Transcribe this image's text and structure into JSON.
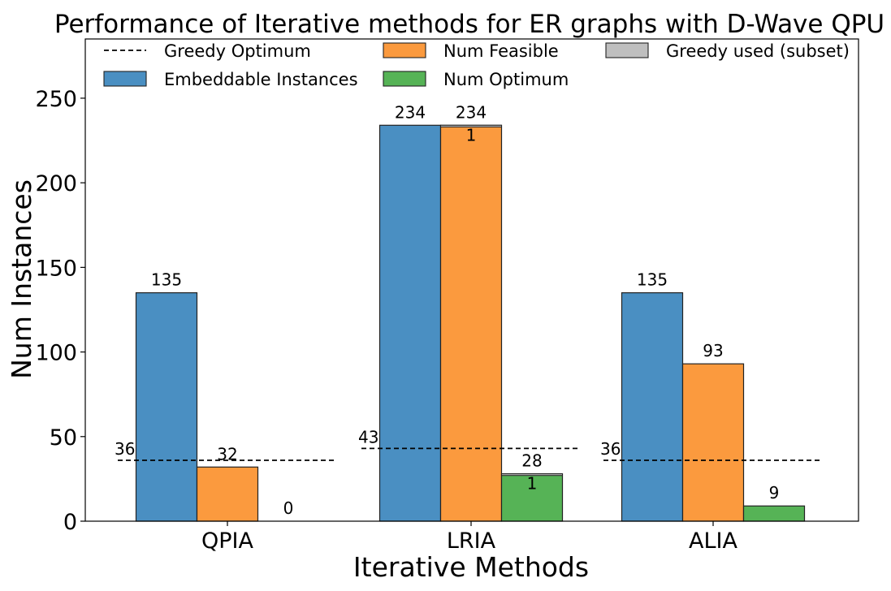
{
  "chart_data": {
    "type": "bar",
    "title": "Performance of Iterative methods for ER graphs with D-Wave QPU",
    "xlabel": "Iterative Methods",
    "ylabel": "Num Instances",
    "ylim": [
      0,
      285
    ],
    "yticks": [
      0,
      50,
      100,
      150,
      200,
      250
    ],
    "categories": [
      "QPIA",
      "LRIA",
      "ALIA"
    ],
    "series": [
      {
        "name": "Embeddable Instances",
        "color": "#4a8fc2",
        "values": [
          135,
          234,
          135
        ],
        "labels": [
          "135",
          "234",
          "135"
        ]
      },
      {
        "name": "Num Feasible",
        "color": "#fb9a3e",
        "values": [
          32,
          234,
          93
        ],
        "labels": [
          "32",
          "234",
          "93"
        ]
      },
      {
        "name": "Num Optimum",
        "color": "#56b356",
        "values": [
          0,
          28,
          9
        ],
        "labels": [
          "0",
          "28",
          "9"
        ]
      }
    ],
    "greedy_optimum": {
      "name": "Greedy Optimum",
      "values": [
        36,
        43,
        36
      ],
      "labels": [
        "36",
        "43",
        "36"
      ]
    },
    "greedy_used": {
      "name": "Greedy used (subset)",
      "color": "#bfbfbf",
      "values": [
        {
          "series": 1,
          "category": 1,
          "value": 1,
          "label": "1"
        },
        {
          "series": 2,
          "category": 1,
          "value": 1,
          "label": "1"
        }
      ]
    },
    "legend": {
      "placement": "top",
      "entries": [
        {
          "name": "Greedy Optimum",
          "kind": "dash"
        },
        {
          "name": "Embeddable Instances",
          "kind": "box",
          "color": "#4a8fc2"
        },
        {
          "name": "Num Feasible",
          "kind": "box",
          "color": "#fb9a3e"
        },
        {
          "name": "Num Optimum",
          "kind": "box",
          "color": "#56b356"
        },
        {
          "name": "Greedy used (subset)",
          "kind": "box",
          "color": "#bfbfbf"
        }
      ]
    }
  }
}
